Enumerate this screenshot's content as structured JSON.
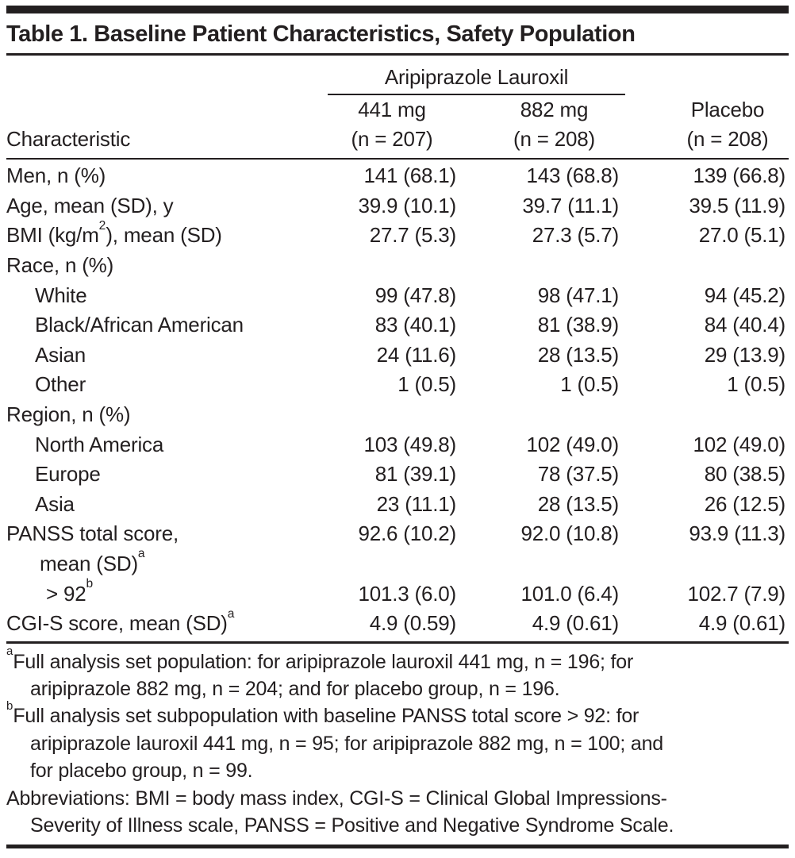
{
  "page": {
    "background": "#ffffff",
    "text_color": "#231f20"
  },
  "title": "Table 1. Baseline Patient Characteristics, Safety Population",
  "table": {
    "spanner": "Aripiprazole Lauroxil",
    "stub_header": "Characteristic",
    "col_headers": [
      {
        "line1": "441 mg",
        "line2": "(n = 207)"
      },
      {
        "line1": "882 mg",
        "line2": "(n = 208)"
      },
      {
        "line1": "Placebo",
        "line2": "(n = 208)"
      }
    ],
    "rows": [
      {
        "label": "Men, n (%)",
        "indent": 0,
        "values": [
          "141 (68.1)",
          "143 (68.8)",
          "139 (66.8)"
        ]
      },
      {
        "label": "Age, mean (SD), y",
        "indent": 0,
        "values": [
          "39.9 (10.1)",
          "39.7 (11.1)",
          "39.5 (11.9)"
        ]
      },
      {
        "label": "BMI (kg/m^{2}), mean (SD)",
        "indent": 0,
        "values": [
          "27.7 (5.3)",
          "27.3 (5.7)",
          "27.0 (5.1)"
        ]
      },
      {
        "label": "Race, n (%)",
        "indent": 0,
        "values": [
          "",
          "",
          ""
        ]
      },
      {
        "label": "White",
        "indent": 1,
        "values": [
          "99 (47.8)",
          "98 (47.1)",
          "94 (45.2)"
        ]
      },
      {
        "label": "Black/African American",
        "indent": 1,
        "values": [
          "83 (40.1)",
          "81 (38.9)",
          "84 (40.4)"
        ]
      },
      {
        "label": "Asian",
        "indent": 1,
        "values": [
          "24 (11.6)",
          "28 (13.5)",
          "29 (13.9)"
        ]
      },
      {
        "label": "Other",
        "indent": 1,
        "values": [
          "1 (0.5)",
          "1 (0.5)",
          "1 (0.5)"
        ]
      },
      {
        "label": "Region, n (%)",
        "indent": 0,
        "values": [
          "",
          "",
          ""
        ]
      },
      {
        "label": "North America",
        "indent": 1,
        "values": [
          "103 (49.8)",
          "102 (49.0)",
          "102 (49.0)"
        ]
      },
      {
        "label": "Europe",
        "indent": 1,
        "values": [
          "81 (39.1)",
          "78 (37.5)",
          "80 (38.5)"
        ]
      },
      {
        "label": "Asia",
        "indent": 1,
        "values": [
          "23 (11.1)",
          "28 (13.5)",
          "26 (12.5)"
        ]
      },
      {
        "label": "PANSS total score,",
        "indent": 0,
        "values": [
          "92.6 (10.2)",
          "92.0 (10.8)",
          "93.9 (11.3)"
        ]
      },
      {
        "label": "mean (SD)^{a}",
        "indent": 2,
        "values": [
          "",
          "",
          ""
        ]
      },
      {
        "label": "> 92^{b}",
        "indent": 3,
        "values": [
          "101.3 (6.0)",
          "101.0 (6.4)",
          "102.7 (7.9)"
        ]
      },
      {
        "label": "CGI-S score, mean (SD)^{a}",
        "indent": 0,
        "values": [
          "4.9 (0.59)",
          "4.9 (0.61)",
          "4.9 (0.61)"
        ]
      }
    ]
  },
  "footnotes": [
    {
      "lines": [
        "^{a}Full analysis set population: for aripiprazole lauroxil 441 mg, n = 196; for",
        "aripiprazole 882 mg, n = 204; and for placebo group, n = 196."
      ]
    },
    {
      "lines": [
        "^{b}Full analysis set subpopulation with baseline PANSS total score > 92: for",
        "aripiprazole lauroxil 441 mg, n = 95; for aripiprazole 882 mg, n = 100; and",
        "for placebo group, n = 99."
      ]
    },
    {
      "lines": [
        "Abbreviations: BMI = body mass index, CGI-S = Clinical Global Impressions-",
        "Severity of Illness scale, PANSS = Positive and Negative Syndrome Scale."
      ]
    }
  ]
}
